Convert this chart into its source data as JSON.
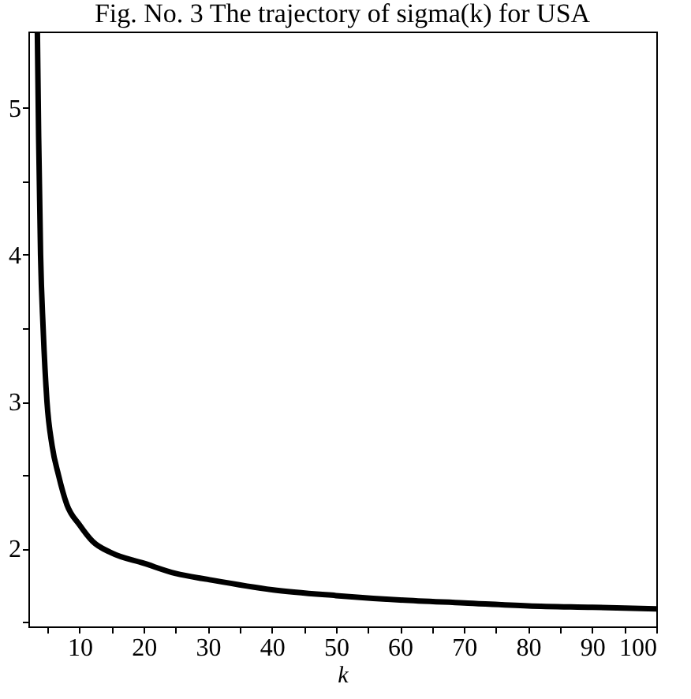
{
  "chart_data": {
    "type": "line",
    "title": "Fig. No. 3 The trajectory of sigma(k) for USA",
    "xlabel": "k",
    "x": [
      3.4,
      3.6,
      3.9,
      4.3,
      4.9,
      5.7,
      6.7,
      8,
      10,
      12,
      15,
      20,
      25,
      30,
      40,
      50,
      60,
      70,
      80,
      90,
      100
    ],
    "series": [
      {
        "color": "#000000",
        "values": [
          5.52,
          4.8,
          4.0,
          3.5,
          3.0,
          2.7,
          2.5,
          2.3,
          2.16,
          2.05,
          1.97,
          1.9,
          1.83,
          1.79,
          1.72,
          1.68,
          1.65,
          1.63,
          1.61,
          1.6,
          1.59
        ]
      }
    ],
    "xlim": [
      2,
      100
    ],
    "ylim": [
      1.47,
      5.52
    ],
    "xticks": [
      {
        "value": 5,
        "label": null
      },
      10,
      {
        "value": 15,
        "label": null
      },
      20,
      {
        "value": 25,
        "label": null
      },
      30,
      {
        "value": 35,
        "label": null
      },
      40,
      {
        "value": 45,
        "label": null
      },
      50,
      {
        "value": 55,
        "label": null
      },
      60,
      {
        "value": 65,
        "label": null
      },
      70,
      {
        "value": 75,
        "label": null
      },
      80,
      {
        "value": 85,
        "label": null
      },
      90,
      {
        "value": 95,
        "label": null
      },
      100
    ],
    "yticks": [
      {
        "value": 1.5,
        "label": null
      },
      2,
      {
        "value": 2.5,
        "label": null
      },
      3,
      {
        "value": 3.5,
        "label": null
      },
      4,
      {
        "value": 4.5,
        "label": null
      },
      5
    ],
    "marker": "none",
    "line_style": "solid"
  }
}
